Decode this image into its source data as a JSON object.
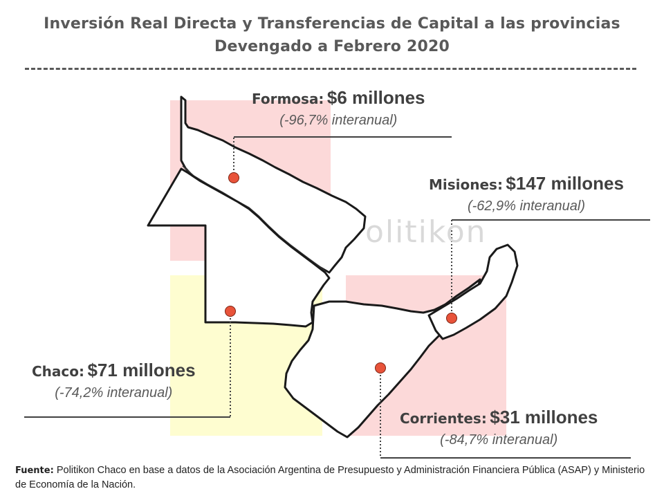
{
  "title": {
    "line1": "Inversión Real Directa y Transferencias de Capital a las provincias",
    "line2": "Devengado a Febrero 2020"
  },
  "watermark": "olitikon",
  "provinces": {
    "formosa": {
      "name": "Formosa:",
      "amount": "$6 millones",
      "change": "(-96,7% interanual)"
    },
    "misiones": {
      "name": "Misiones:",
      "amount": "$147 millones",
      "change": "(-62,9% interanual)"
    },
    "chaco": {
      "name": "Chaco:",
      "amount": "$71 millones",
      "change": "(-74,2% interanual)"
    },
    "corrientes": {
      "name": "Corrientes:",
      "amount": "$31 millones",
      "change": "(-84,7% interanual)"
    }
  },
  "source": {
    "label": "Fuente:",
    "text": "Politikon Chaco en base a datos de la Asociación Argentina de Presupuesto y Administración Financiera Pública (ASAP) y Ministerio de Economía de la Nación."
  },
  "colors": {
    "marker": "#e8533a",
    "block_pink": "#fcd9d9",
    "block_yellow": "#fefdd0",
    "text_gray": "#595959"
  }
}
